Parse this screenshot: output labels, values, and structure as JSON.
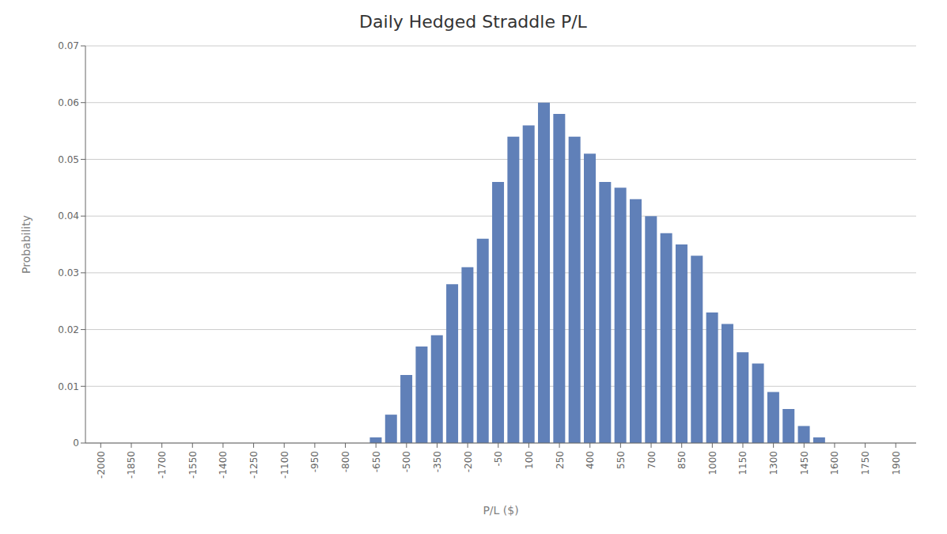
{
  "chart_data": {
    "type": "bar",
    "title": "Daily Hedged Straddle P/L",
    "xlabel": "P/L ($)",
    "ylabel": "Probability",
    "x": [
      -650,
      -575,
      -500,
      -425,
      -350,
      -275,
      -200,
      -125,
      -50,
      25,
      100,
      175,
      250,
      325,
      400,
      475,
      550,
      625,
      700,
      775,
      850,
      925,
      1000,
      1075,
      1150,
      1225,
      1300,
      1375,
      1450,
      1525
    ],
    "values": [
      0.001,
      0.005,
      0.012,
      0.017,
      0.019,
      0.028,
      0.031,
      0.036,
      0.046,
      0.054,
      0.056,
      0.06,
      0.058,
      0.054,
      0.051,
      0.046,
      0.045,
      0.043,
      0.04,
      0.037,
      0.035,
      0.033,
      0.023,
      0.021,
      0.016,
      0.014,
      0.009,
      0.006,
      0.003,
      0.001
    ],
    "color": "#6080B8",
    "xlim": [
      -2075,
      2000
    ],
    "xticks": [
      -2000,
      -1850,
      -1700,
      -1550,
      -1400,
      -1250,
      -1100,
      -950,
      -800,
      -650,
      -500,
      -350,
      -200,
      -50,
      100,
      250,
      400,
      550,
      700,
      850,
      1000,
      1150,
      1300,
      1450,
      1600,
      1750,
      1900
    ],
    "ylim": [
      0,
      0.07
    ],
    "yticks": [
      0,
      0.01,
      0.02,
      0.03,
      0.04,
      0.05,
      0.06,
      0.07
    ],
    "grid": true
  }
}
